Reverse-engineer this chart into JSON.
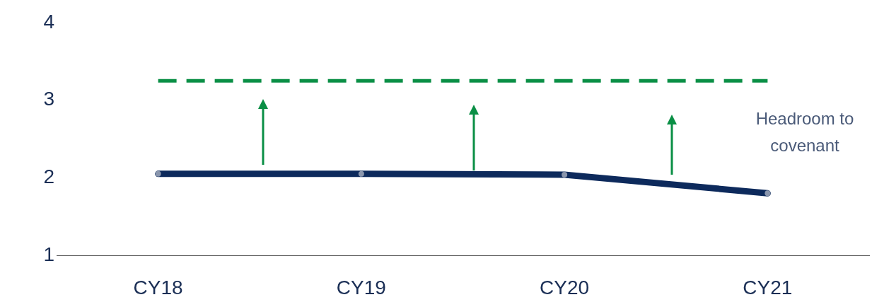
{
  "chart_data": {
    "type": "line",
    "categories": [
      "CY18",
      "CY19",
      "CY20",
      "CY21"
    ],
    "series": [
      {
        "color": "#0d2a5c",
        "values": [
          2.05,
          2.05,
          2.04,
          1.8
        ]
      }
    ],
    "ylim": [
      1,
      4
    ],
    "yticks": [
      1,
      2,
      3,
      4
    ],
    "grid": false,
    "legend": false,
    "marker": "circle",
    "line_style": "solid",
    "ref_lines": [
      {
        "axis": "y",
        "value": 3.25,
        "color": "#0a8f45",
        "line_style": "dashed"
      }
    ],
    "annotations": [
      "Headroom to covenant"
    ]
  }
}
